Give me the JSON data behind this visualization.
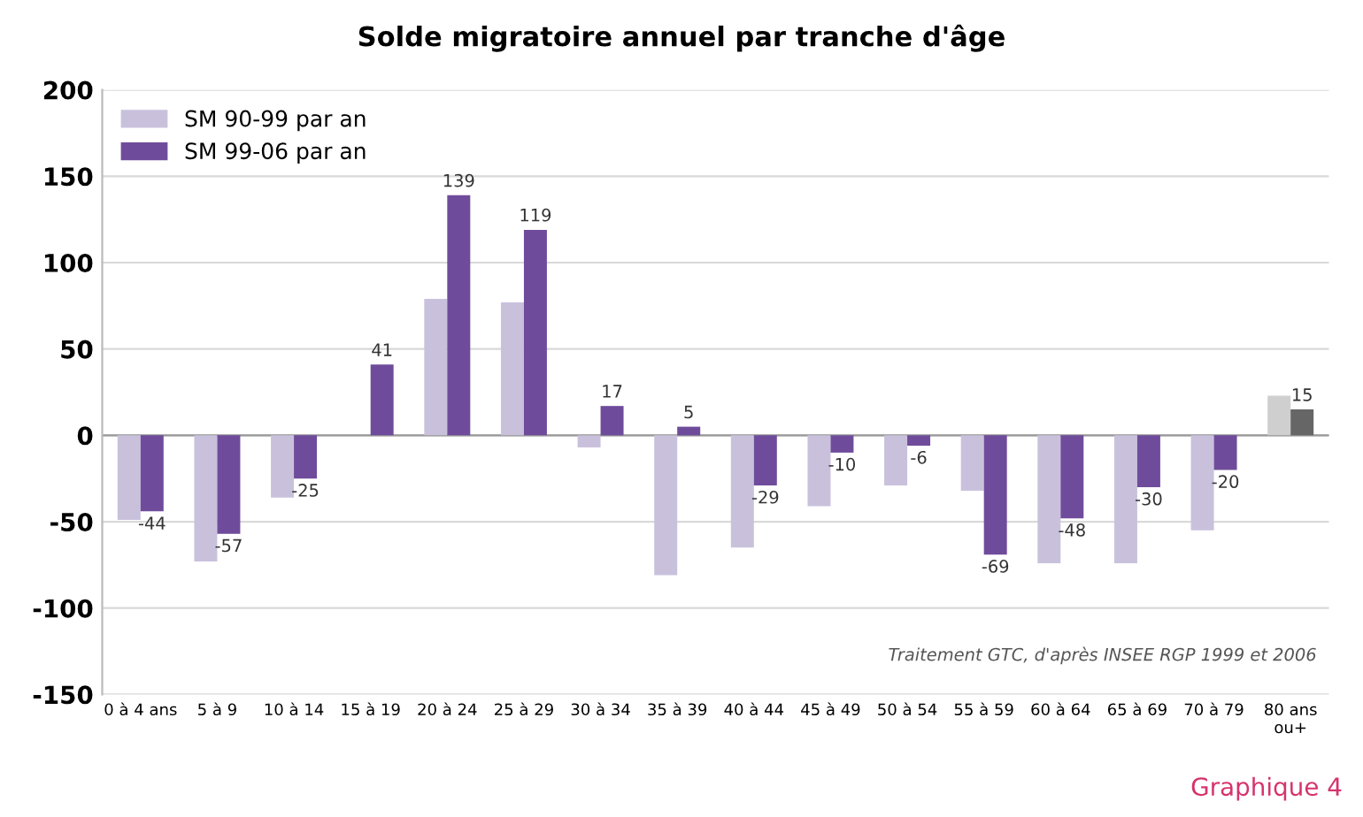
{
  "chart_data": {
    "type": "bar",
    "title": "Solde migratoire annuel par tranche d'âge",
    "categories": [
      "0 à 4 ans",
      "5 à 9",
      "10 à 14",
      "15 à 19",
      "20 à 24",
      "25 à 29",
      "30 à 34",
      "35 à 39",
      "40 à 44",
      "45 à 49",
      "50 à 54",
      "55 à 59",
      "60 à 64",
      "65 à 69",
      "70 à 79",
      "80 ans\nou+"
    ],
    "series": [
      {
        "name": "SM 90-99 par an",
        "color": "#c9c1dc",
        "colors": [
          "#c9c1dc",
          "#c9c1dc",
          "#c9c1dc",
          "#c9c1dc",
          "#c9c1dc",
          "#c9c1dc",
          "#c9c1dc",
          "#c9c1dc",
          "#c9c1dc",
          "#c9c1dc",
          "#c9c1dc",
          "#c9c1dc",
          "#c9c1dc",
          "#c9c1dc",
          "#c9c1dc",
          "#cfcfcf"
        ],
        "values": [
          -49,
          -73,
          -36,
          0,
          79,
          77,
          -7,
          -81,
          -65,
          -41,
          -29,
          -32,
          -74,
          -74,
          -55,
          23
        ]
      },
      {
        "name": "SM 99-06 par an",
        "color": "#6f4c9b",
        "colors": [
          "#6f4c9b",
          "#6f4c9b",
          "#6f4c9b",
          "#6f4c9b",
          "#6f4c9b",
          "#6f4c9b",
          "#6f4c9b",
          "#6f4c9b",
          "#6f4c9b",
          "#6f4c9b",
          "#6f4c9b",
          "#6f4c9b",
          "#6f4c9b",
          "#6f4c9b",
          "#6f4c9b",
          "#666666"
        ],
        "values": [
          -44,
          -57,
          -25,
          41,
          139,
          119,
          17,
          5,
          -29,
          -10,
          -6,
          -69,
          -48,
          -30,
          -20,
          15
        ],
        "value_labels": [
          "-44",
          "-57",
          "-25",
          "41",
          "139",
          "119",
          "17",
          "5",
          "-29",
          "-10",
          "-6",
          "-69",
          "-48",
          "-30",
          "-20",
          "15"
        ]
      }
    ],
    "ylim": [
      -150,
      200
    ],
    "yticks": [
      -150,
      -100,
      -50,
      0,
      50,
      100,
      150,
      200
    ],
    "grid": "y",
    "legend": "top left",
    "annotations": [
      "Traitement GTC, d'après INSEE RGP 1999 et 2006",
      "Graphique 4"
    ]
  }
}
